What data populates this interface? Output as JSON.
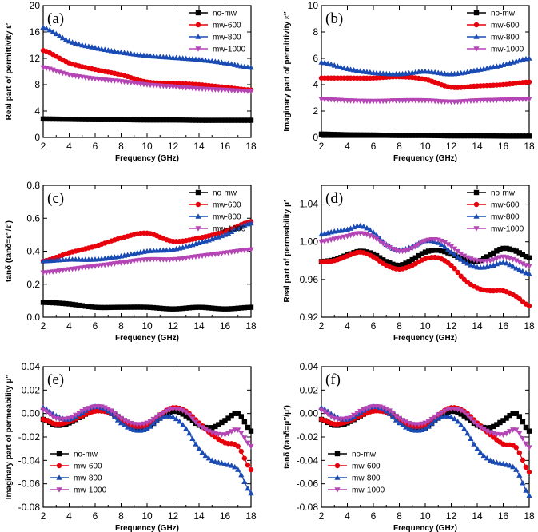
{
  "colors": {
    "no-mw": "#000000",
    "mw-600": "#e8000b",
    "mw-800": "#1a4bb5",
    "mw-1000": "#b545b5"
  },
  "markers": {
    "no-mw": "square",
    "mw-600": "circle",
    "mw-800": "triangle-up",
    "mw-1000": "triangle-down"
  },
  "chart_data": [
    {
      "id": "a",
      "type": "line",
      "panel_label": "(a)",
      "xlabel": "Frequency (GHz)",
      "ylabel": "Real part of permittivity ε′",
      "xlim": [
        2,
        18
      ],
      "ylim": [
        0,
        20
      ],
      "xticks": [
        2,
        4,
        6,
        8,
        10,
        12,
        14,
        16,
        18
      ],
      "yticks": [
        0,
        4,
        8,
        12,
        16,
        20
      ],
      "legend_position": "top-right",
      "x": [
        2,
        4,
        6,
        8,
        10,
        12,
        14,
        16,
        18
      ],
      "series": [
        {
          "name": "no-mw",
          "values": [
            2.8,
            2.75,
            2.7,
            2.7,
            2.65,
            2.65,
            2.6,
            2.6,
            2.6
          ]
        },
        {
          "name": "mw-600",
          "values": [
            13.2,
            11.3,
            10.3,
            9.5,
            8.4,
            8.2,
            8.0,
            7.6,
            7.2
          ]
        },
        {
          "name": "mw-800",
          "values": [
            16.7,
            14.6,
            13.6,
            12.9,
            12.4,
            12.1,
            11.8,
            11.3,
            10.6
          ]
        },
        {
          "name": "mw-1000",
          "values": [
            10.6,
            9.5,
            8.9,
            8.5,
            8.0,
            7.7,
            7.4,
            7.2,
            7.0
          ]
        }
      ]
    },
    {
      "id": "b",
      "type": "line",
      "panel_label": "(b)",
      "xlabel": "Frequency (GHz)",
      "ylabel": "Imaginary part of permittivity ε″",
      "xlim": [
        2,
        18
      ],
      "ylim": [
        0,
        10
      ],
      "xticks": [
        2,
        4,
        6,
        8,
        10,
        12,
        14,
        16,
        18
      ],
      "yticks": [
        0,
        2,
        4,
        6,
        8,
        10
      ],
      "legend_position": "top-right",
      "x": [
        2,
        4,
        6,
        8,
        10,
        12,
        14,
        16,
        18
      ],
      "series": [
        {
          "name": "no-mw",
          "values": [
            0.25,
            0.2,
            0.18,
            0.15,
            0.15,
            0.12,
            0.12,
            0.1,
            0.1
          ]
        },
        {
          "name": "mw-600",
          "values": [
            4.5,
            4.5,
            4.5,
            4.6,
            4.4,
            3.8,
            3.9,
            4.0,
            4.2
          ]
        },
        {
          "name": "mw-800",
          "values": [
            5.7,
            5.2,
            4.9,
            4.8,
            5.0,
            4.8,
            5.1,
            5.5,
            6.0
          ]
        },
        {
          "name": "mw-1000",
          "values": [
            2.9,
            2.8,
            2.75,
            2.8,
            2.8,
            2.7,
            2.8,
            2.85,
            2.9
          ]
        }
      ]
    },
    {
      "id": "c",
      "type": "line",
      "panel_label": "(c)",
      "xlabel": "Frequency (GHz)",
      "ylabel": "tanδ (tanδ=ε″/ε′)",
      "xlim": [
        2,
        18
      ],
      "ylim": [
        0,
        0.8
      ],
      "xticks": [
        2,
        4,
        6,
        8,
        10,
        12,
        14,
        16,
        18
      ],
      "yticks": [
        0.0,
        0.2,
        0.4,
        0.6,
        0.8
      ],
      "yticklabels": [
        "0.0",
        "0.2",
        "0.4",
        "0.6",
        "0.8"
      ],
      "legend_position": "top-right",
      "x": [
        2,
        4,
        6,
        8,
        10,
        12,
        14,
        16,
        18
      ],
      "series": [
        {
          "name": "no-mw",
          "values": [
            0.09,
            0.08,
            0.06,
            0.06,
            0.06,
            0.05,
            0.06,
            0.05,
            0.06
          ]
        },
        {
          "name": "mw-600",
          "values": [
            0.34,
            0.39,
            0.43,
            0.48,
            0.51,
            0.46,
            0.48,
            0.52,
            0.58
          ]
        },
        {
          "name": "mw-800",
          "values": [
            0.34,
            0.35,
            0.35,
            0.37,
            0.4,
            0.41,
            0.45,
            0.5,
            0.57
          ]
        },
        {
          "name": "mw-1000",
          "values": [
            0.27,
            0.29,
            0.31,
            0.33,
            0.35,
            0.35,
            0.37,
            0.39,
            0.41
          ]
        }
      ]
    },
    {
      "id": "d",
      "type": "line",
      "panel_label": "(d)",
      "xlabel": "Frequency (GHz)",
      "ylabel": "Real part of permeability μ′",
      "xlim": [
        2,
        18
      ],
      "ylim": [
        0.92,
        1.06
      ],
      "xticks": [
        2,
        4,
        6,
        8,
        10,
        12,
        14,
        16,
        18
      ],
      "yticks": [
        0.92,
        0.96,
        1.0,
        1.04
      ],
      "yticklabels": [
        "0.92",
        "0.96",
        "1.00",
        "1.04"
      ],
      "legend_position": "top-right",
      "x": [
        2,
        3,
        4,
        5,
        6,
        7,
        8,
        9,
        10,
        11,
        12,
        13,
        14,
        15,
        16,
        17,
        18
      ],
      "series": [
        {
          "name": "no-mw",
          "values": [
            0.979,
            0.981,
            0.986,
            0.99,
            0.987,
            0.979,
            0.975,
            0.981,
            0.989,
            0.991,
            0.987,
            0.981,
            0.979,
            0.986,
            0.993,
            0.99,
            0.983
          ]
        },
        {
          "name": "mw-600",
          "values": [
            0.979,
            0.98,
            0.985,
            0.989,
            0.984,
            0.975,
            0.971,
            0.975,
            0.982,
            0.983,
            0.975,
            0.96,
            0.951,
            0.948,
            0.948,
            0.942,
            0.932
          ]
        },
        {
          "name": "mw-800",
          "values": [
            1.008,
            1.011,
            1.013,
            1.017,
            1.01,
            0.997,
            0.991,
            0.995,
            1.001,
            0.999,
            0.989,
            0.979,
            0.973,
            0.974,
            0.978,
            0.972,
            0.966
          ]
        },
        {
          "name": "mw-1000",
          "values": [
            1.0,
            1.003,
            1.006,
            1.009,
            1.005,
            0.996,
            0.99,
            0.993,
            1.001,
            1.002,
            0.995,
            0.985,
            0.98,
            0.98,
            0.984,
            0.98,
            0.974
          ]
        }
      ]
    },
    {
      "id": "e",
      "type": "line",
      "panel_label": "(e)",
      "xlabel": "Frequency (GHz)",
      "ylabel": "Imaginary part of permeability μ″",
      "xlim": [
        2,
        18
      ],
      "ylim": [
        -0.08,
        0.04
      ],
      "xticks": [
        2,
        4,
        6,
        8,
        10,
        12,
        14,
        16,
        18
      ],
      "yticks": [
        -0.08,
        -0.06,
        -0.04,
        -0.02,
        0.0,
        0.02,
        0.04
      ],
      "yticklabels": [
        "-0.08",
        "-0.06",
        "-0.04",
        "-0.02",
        "0.00",
        "0.02",
        "0.04"
      ],
      "legend_position": "bottom-left",
      "x": [
        2,
        3,
        4,
        5,
        6,
        7,
        8,
        9,
        10,
        11,
        12,
        13,
        14,
        15,
        16,
        17,
        18
      ],
      "series": [
        {
          "name": "no-mw",
          "values": [
            -0.005,
            -0.01,
            -0.008,
            -0.002,
            0.003,
            0.002,
            -0.005,
            -0.011,
            -0.012,
            -0.004,
            0.002,
            -0.002,
            -0.01,
            -0.012,
            -0.006,
            0.0,
            -0.015
          ]
        },
        {
          "name": "mw-600",
          "values": [
            -0.005,
            -0.009,
            -0.007,
            -0.002,
            0.002,
            0.001,
            -0.005,
            -0.011,
            -0.01,
            -0.001,
            0.005,
            0.002,
            -0.008,
            -0.018,
            -0.025,
            -0.028,
            -0.048
          ]
        },
        {
          "name": "mw-800",
          "values": [
            0.005,
            -0.002,
            -0.005,
            0.001,
            0.006,
            0.002,
            -0.008,
            -0.014,
            -0.013,
            -0.004,
            -0.003,
            -0.013,
            -0.03,
            -0.04,
            -0.043,
            -0.048,
            -0.068
          ]
        },
        {
          "name": "mw-1000",
          "values": [
            0.003,
            -0.004,
            -0.004,
            0.002,
            0.006,
            0.004,
            -0.004,
            -0.009,
            -0.008,
            -0.001,
            0.004,
            0.001,
            -0.01,
            -0.016,
            -0.018,
            -0.014,
            -0.028
          ]
        }
      ]
    },
    {
      "id": "f",
      "type": "line",
      "panel_label": "(f)",
      "xlabel": "Frequency (GHz)",
      "ylabel": "tanδ (tanδ=μ″/μ′)",
      "xlim": [
        2,
        18
      ],
      "ylim": [
        -0.08,
        0.04
      ],
      "xticks": [
        2,
        4,
        6,
        8,
        10,
        12,
        14,
        16,
        18
      ],
      "yticks": [
        -0.08,
        -0.06,
        -0.04,
        -0.02,
        0.0,
        0.02,
        0.04
      ],
      "yticklabels": [
        "-0.08",
        "-0.06",
        "-0.04",
        "-0.02",
        "0.00",
        "0.02",
        "0.04"
      ],
      "legend_position": "bottom-left",
      "x": [
        2,
        3,
        4,
        5,
        6,
        7,
        8,
        9,
        10,
        11,
        12,
        13,
        14,
        15,
        16,
        17,
        18
      ],
      "series": [
        {
          "name": "no-mw",
          "values": [
            -0.005,
            -0.01,
            -0.008,
            -0.002,
            0.003,
            0.002,
            -0.005,
            -0.011,
            -0.012,
            -0.004,
            0.002,
            -0.002,
            -0.01,
            -0.012,
            -0.006,
            0.0,
            -0.015
          ]
        },
        {
          "name": "mw-600",
          "values": [
            -0.005,
            -0.009,
            -0.007,
            -0.002,
            0.002,
            0.001,
            -0.005,
            -0.011,
            -0.01,
            -0.001,
            0.005,
            0.002,
            -0.008,
            -0.018,
            -0.026,
            -0.029,
            -0.05
          ]
        },
        {
          "name": "mw-800",
          "values": [
            0.005,
            -0.002,
            -0.005,
            0.001,
            0.006,
            0.002,
            -0.008,
            -0.014,
            -0.013,
            -0.004,
            -0.003,
            -0.013,
            -0.03,
            -0.04,
            -0.043,
            -0.048,
            -0.07
          ]
        },
        {
          "name": "mw-1000",
          "values": [
            0.003,
            -0.004,
            -0.004,
            0.002,
            0.006,
            0.004,
            -0.004,
            -0.009,
            -0.008,
            -0.001,
            0.004,
            0.001,
            -0.01,
            -0.016,
            -0.018,
            -0.014,
            -0.029
          ]
        }
      ]
    }
  ]
}
